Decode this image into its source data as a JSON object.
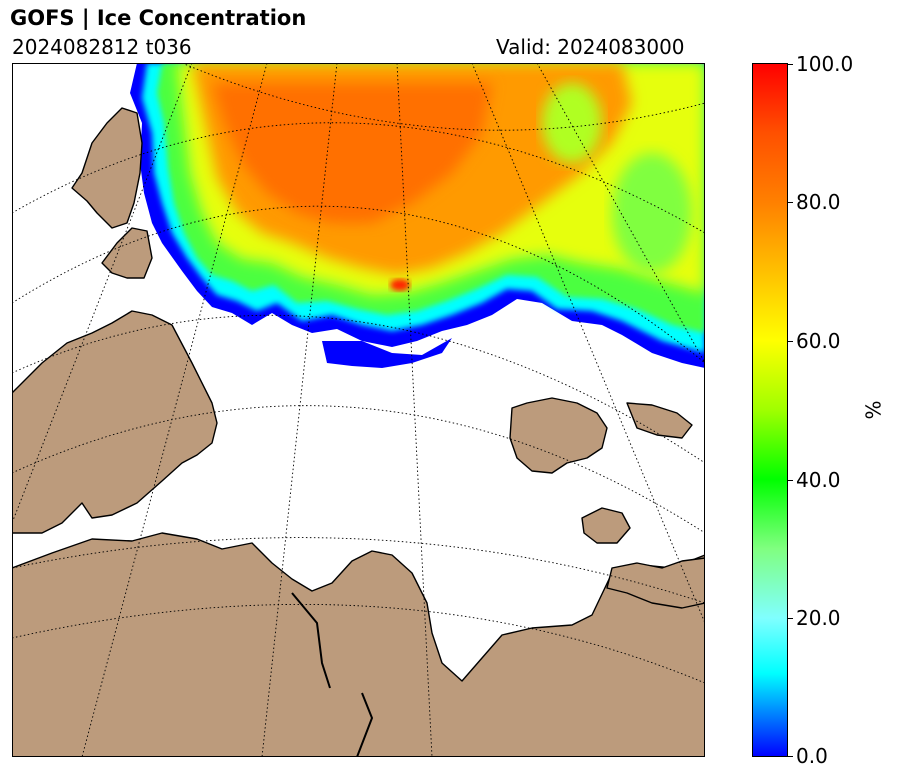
{
  "header": {
    "title": "GOFS  |  Ice Concentration",
    "run": "2024082812 t036",
    "valid": "Valid: 2024083000"
  },
  "colorbar": {
    "unit": "%",
    "min": 0,
    "max": 100,
    "ticks": [
      "0.0",
      "20.0",
      "40.0",
      "60.0",
      "80.0",
      "100.0"
    ],
    "stops": [
      {
        "value": 0,
        "color": "#0000ff"
      },
      {
        "value": 12,
        "color": "#00ffff"
      },
      {
        "value": 20,
        "color": "#80ffff"
      },
      {
        "value": 30,
        "color": "#80ff80"
      },
      {
        "value": 40,
        "color": "#00ff00"
      },
      {
        "value": 50,
        "color": "#a0ff00"
      },
      {
        "value": 60,
        "color": "#ffff00"
      },
      {
        "value": 70,
        "color": "#ffc000"
      },
      {
        "value": 80,
        "color": "#ff8000"
      },
      {
        "value": 90,
        "color": "#ff5000"
      },
      {
        "value": 100,
        "color": "#ff0000"
      }
    ]
  },
  "map": {
    "land_color": "#bc9b7c",
    "ocean_color": "#ffffff",
    "graticule": "dotted"
  }
}
